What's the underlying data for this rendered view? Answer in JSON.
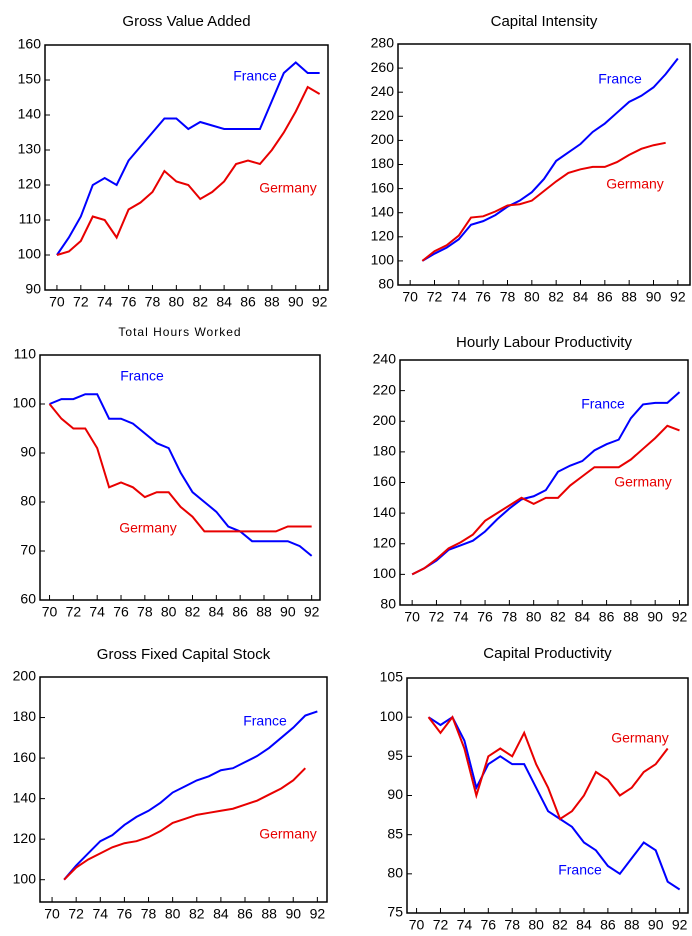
{
  "chart_data": [
    {
      "type": "line",
      "title": "Gross Value Added",
      "x": [
        70,
        71,
        72,
        73,
        74,
        75,
        76,
        77,
        78,
        79,
        80,
        81,
        82,
        83,
        84,
        85,
        86,
        87,
        88,
        89,
        90,
        91,
        92
      ],
      "series": [
        {
          "name": "France",
          "color": "#0000ff",
          "values": [
            100,
            105,
            111,
            120,
            122,
            120,
            127,
            131,
            135,
            139,
            139,
            136,
            138,
            137,
            136,
            136,
            136,
            136,
            144,
            152,
            155,
            152,
            152
          ]
        },
        {
          "name": "Germany",
          "color": "#e80000",
          "values": [
            100,
            101,
            104,
            111,
            110,
            105,
            113,
            115,
            118,
            124,
            121,
            120,
            116,
            118,
            121,
            126,
            127,
            126,
            130,
            135,
            141,
            148,
            146
          ]
        }
      ],
      "xlim": [
        69,
        92.7
      ],
      "xticks": [
        70,
        72,
        74,
        76,
        78,
        80,
        82,
        84,
        86,
        88,
        90,
        92
      ],
      "ylim": [
        90,
        160
      ],
      "yticks": [
        90,
        100,
        110,
        120,
        130,
        140,
        150,
        160
      ]
    },
    {
      "type": "line",
      "title": "Capital Intensity",
      "x": [
        71,
        72,
        73,
        74,
        75,
        76,
        77,
        78,
        79,
        80,
        81,
        82,
        83,
        84,
        85,
        86,
        87,
        88,
        89,
        90,
        91,
        92
      ],
      "series": [
        {
          "name": "France",
          "color": "#0000ff",
          "values": [
            100,
            106,
            111,
            118,
            130,
            133,
            138,
            145,
            150,
            157,
            168,
            183,
            190,
            197,
            207,
            214,
            223,
            232,
            237,
            244,
            255,
            268
          ]
        },
        {
          "name": "Germany",
          "color": "#e80000",
          "values": [
            100,
            108,
            113,
            121,
            136,
            137,
            141,
            146,
            147,
            150,
            158,
            166,
            173,
            176,
            178,
            178,
            182,
            188,
            193,
            196,
            198,
            null
          ]
        }
      ],
      "xlim": [
        69,
        93
      ],
      "xticks": [
        70,
        72,
        74,
        76,
        78,
        80,
        82,
        84,
        86,
        88,
        90,
        92
      ],
      "ylim": [
        80,
        280
      ],
      "yticks": [
        80,
        100,
        120,
        140,
        160,
        180,
        200,
        220,
        240,
        260,
        280
      ]
    },
    {
      "type": "line",
      "title": "Total Hours Worked",
      "x": [
        70,
        71,
        72,
        73,
        74,
        75,
        76,
        77,
        78,
        79,
        80,
        81,
        82,
        83,
        84,
        85,
        86,
        87,
        88,
        89,
        90,
        91,
        92
      ],
      "series": [
        {
          "name": "France",
          "color": "#0000ff",
          "values": [
            100,
            101,
            101,
            102,
            102,
            97,
            97,
            96,
            94,
            92,
            91,
            86,
            82,
            80,
            78,
            75,
            74,
            72,
            72,
            72,
            72,
            71,
            69
          ]
        },
        {
          "name": "Germany",
          "color": "#e80000",
          "values": [
            100,
            97,
            95,
            95,
            91,
            83,
            84,
            83,
            81,
            82,
            82,
            79,
            77,
            74,
            74,
            74,
            74,
            74,
            74,
            74,
            75,
            75,
            75
          ]
        }
      ],
      "xlim": [
        69.2,
        92.7
      ],
      "xticks": [
        70,
        72,
        74,
        76,
        78,
        80,
        82,
        84,
        86,
        88,
        90,
        92
      ],
      "ylim": [
        60,
        110
      ],
      "yticks": [
        60,
        70,
        80,
        90,
        100,
        110
      ]
    },
    {
      "type": "line",
      "title": "Hourly Labour Productivity",
      "x": [
        70,
        71,
        72,
        73,
        74,
        75,
        76,
        77,
        78,
        79,
        80,
        81,
        82,
        83,
        84,
        85,
        86,
        87,
        88,
        89,
        90,
        91,
        92
      ],
      "series": [
        {
          "name": "France",
          "color": "#0000ff",
          "values": [
            100,
            104,
            109,
            116,
            119,
            122,
            128,
            136,
            143,
            149,
            151,
            155,
            167,
            171,
            174,
            181,
            185,
            188,
            202,
            211,
            212,
            212,
            219
          ]
        },
        {
          "name": "Germany",
          "color": "#e80000",
          "values": [
            100,
            104,
            110,
            117,
            121,
            126,
            135,
            140,
            145,
            150,
            146,
            150,
            150,
            158,
            164,
            170,
            170,
            170,
            175,
            182,
            189,
            197,
            194
          ]
        }
      ],
      "xlim": [
        69,
        92.7
      ],
      "xticks": [
        70,
        72,
        74,
        76,
        78,
        80,
        82,
        84,
        86,
        88,
        90,
        92
      ],
      "ylim": [
        80,
        240
      ],
      "yticks": [
        80,
        100,
        120,
        140,
        160,
        180,
        200,
        220,
        240
      ]
    },
    {
      "type": "line",
      "title": "Gross Fixed Capital Stock",
      "x": [
        71,
        72,
        73,
        74,
        75,
        76,
        77,
        78,
        79,
        80,
        81,
        82,
        83,
        84,
        85,
        86,
        87,
        88,
        89,
        90,
        91,
        92
      ],
      "series": [
        {
          "name": "France",
          "color": "#0000ff",
          "values": [
            100,
            107,
            113,
            119,
            122,
            127,
            131,
            134,
            138,
            143,
            146,
            149,
            151,
            154,
            155,
            158,
            161,
            165,
            170,
            175,
            181,
            183
          ]
        },
        {
          "name": "Germany",
          "color": "#e80000",
          "values": [
            100,
            106,
            110,
            113,
            116,
            118,
            119,
            121,
            124,
            128,
            130,
            132,
            133,
            134,
            135,
            137,
            139,
            142,
            145,
            149,
            155,
            null
          ]
        }
      ],
      "xlim": [
        69,
        92.8
      ],
      "xticks": [
        70,
        72,
        74,
        76,
        78,
        80,
        82,
        84,
        86,
        88,
        90,
        92
      ],
      "ylim": [
        89,
        200
      ],
      "yticks": [
        100,
        120,
        140,
        160,
        180,
        200
      ]
    },
    {
      "type": "line",
      "title": "Capital Productivity",
      "x": [
        71,
        72,
        73,
        74,
        75,
        76,
        77,
        78,
        79,
        80,
        81,
        82,
        83,
        84,
        85,
        86,
        87,
        88,
        89,
        90,
        91,
        92
      ],
      "series": [
        {
          "name": "France",
          "color": "#0000ff",
          "values": [
            100,
            99,
            100,
            97,
            91,
            94,
            95,
            94,
            94,
            91,
            88,
            87,
            86,
            84,
            83,
            81,
            80,
            82,
            84,
            83,
            79,
            78
          ]
        },
        {
          "name": "Germany",
          "color": "#e80000",
          "values": [
            100,
            98,
            100,
            96,
            90,
            95,
            96,
            95,
            98,
            94,
            91,
            87,
            88,
            90,
            93,
            92,
            90,
            91,
            93,
            94,
            96,
            null
          ]
        }
      ],
      "xlim": [
        69.2,
        92.7
      ],
      "xticks": [
        70,
        72,
        74,
        76,
        78,
        80,
        82,
        84,
        86,
        88,
        90,
        92
      ],
      "ylim": [
        75,
        105
      ],
      "yticks": [
        75,
        80,
        85,
        90,
        95,
        100,
        105
      ]
    }
  ]
}
